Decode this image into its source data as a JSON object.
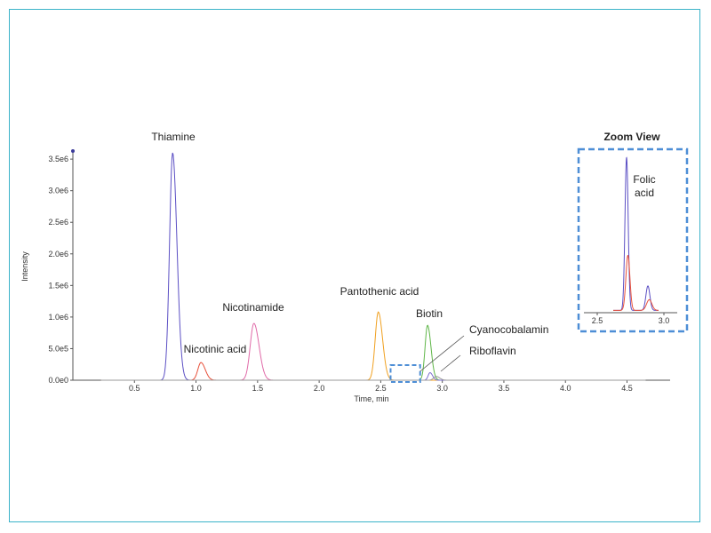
{
  "chart_data": [
    {
      "type": "line",
      "title": "",
      "xlabel": "Time, min",
      "ylabel": "Intensity",
      "xlim": [
        0.0,
        4.85
      ],
      "ylim": [
        0,
        3600000
      ],
      "x_ticks": [
        0.5,
        1.0,
        1.5,
        2.0,
        2.5,
        3.0,
        3.5,
        4.0,
        4.5
      ],
      "x_tick_labels": [
        "0.5",
        "1.0",
        "1.5",
        "2.0",
        "2.5",
        "3.0",
        "3.5",
        "4.0",
        "4.5"
      ],
      "y_ticks": [
        0,
        500000,
        1000000,
        1500000,
        2000000,
        2500000,
        3000000,
        3500000
      ],
      "y_tick_labels": [
        "0.0e0",
        "5.0e5",
        "1.0e6",
        "1.5e6",
        "2.0e6",
        "2.5e6",
        "3.0e6",
        "3.5e6"
      ],
      "grid": false,
      "series": [
        {
          "name": "Thiamine",
          "color": "#5b4fc4",
          "rt": 0.81,
          "height": 3600000,
          "width": 0.025
        },
        {
          "name": "Nicotinic acid",
          "color": "#e8503a",
          "rt": 1.04,
          "height": 280000,
          "width": 0.025
        },
        {
          "name": "Nicotinamide",
          "color": "#e06aa8",
          "rt": 1.47,
          "height": 900000,
          "width": 0.03
        },
        {
          "name": "Pantothenic acid",
          "color": "#f0a020",
          "rt": 2.48,
          "height": 1080000,
          "width": 0.025
        },
        {
          "name": "Biotin",
          "color": "#5fb648",
          "rt": 2.88,
          "height": 870000,
          "width": 0.02
        },
        {
          "name": "Cyanocobalamin",
          "color": "#7b6fd0",
          "rt": 2.9,
          "height": 120000,
          "width": 0.015
        },
        {
          "name": "Riboflavin",
          "color": "#9a9a9a",
          "rt": 2.95,
          "height": 60000,
          "width": 0.02
        }
      ],
      "annotations": [
        "Thiamine",
        "Nicotinic acid",
        "Nicotinamide",
        "Pantothenic acid",
        "Biotin",
        "Cyanocobalamin",
        "Riboflavin"
      ]
    },
    {
      "type": "line",
      "title": "Zoom View",
      "xlim": [
        2.4,
        3.1
      ],
      "x_ticks": [
        2.5,
        3.0
      ],
      "x_tick_labels": [
        "2.5",
        "3.0"
      ],
      "annotation": "Folic acid",
      "series": [
        {
          "color": "#5b4fc4",
          "peaks": [
            [
              2.72,
              1.0,
              0.012
            ],
            [
              2.88,
              0.16,
              0.015
            ]
          ]
        },
        {
          "color": "#e8503a",
          "peaks": [
            [
              2.73,
              0.36,
              0.015
            ],
            [
              2.89,
              0.07,
              0.02
            ]
          ]
        }
      ]
    }
  ],
  "zoom_region": {
    "x_range": [
      2.58,
      2.82
    ]
  }
}
